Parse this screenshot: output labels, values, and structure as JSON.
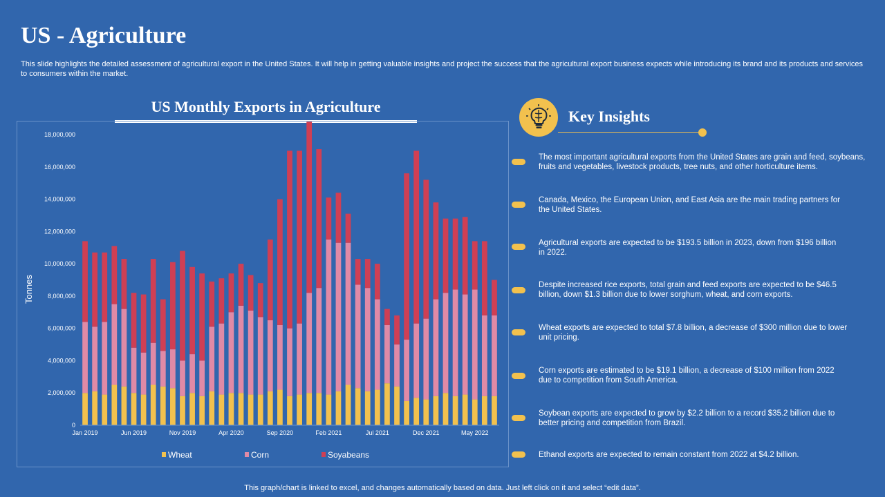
{
  "page": {
    "title": "US - Agriculture",
    "subtitle": "This slide highlights the detailed assessment of agricultural export in the United States. It will help in getting valuable insights and project the success that the agricultural export business expects while introducing its brand and its products and services to consumers within the market.",
    "footer": "This graph/chart is linked to excel,  and changes automatically based on data. Just left click on it and select “edit data”."
  },
  "insights": {
    "heading": "Key Insights",
    "icon": "brain-lightbulb-icon",
    "accent": "#f2c14e",
    "items": [
      "The most important agricultural exports from the United States are grain and feed, soybeans, fruits and vegetables, livestock products, tree nuts, and other horticulture items.",
      "Canada, Mexico, the European Union, and East Asia are the main trading partners for the United States.",
      "Agricultural exports are expected to be $193.5 billion in 2023, down from $196 billion in 2022.",
      "Despite increased rice exports, total grain and feed exports are expected to  be $46.5 billion, down $1.3 billion due to lower sorghum, wheat, and corn exports.",
      "Wheat exports are expected to total $7.8 billion, a decrease of $300 million due to lower unit pricing.",
      "Corn exports are estimated to be $19.1 billion, a decrease of $100 million from 2022 due to competition from South America.",
      "Soybean exports are expected to grow by $2.2 billion to a record $35.2 billion due to better pricing and competition from Brazil.",
      "Ethanol exports are expected to remain constant from 2022 at $4.2 billion."
    ]
  },
  "chart_data": {
    "type": "bar",
    "stacked": true,
    "title": "US Monthly Exports in Agriculture",
    "xlabel": "",
    "ylabel": "Tonnes",
    "ylim": [
      0,
      18000000
    ],
    "yticks": [
      0,
      2000000,
      4000000,
      6000000,
      8000000,
      10000000,
      12000000,
      14000000,
      16000000,
      18000000
    ],
    "ytick_labels": [
      "0",
      "2,000,000",
      "4,000,000",
      "6,000,000",
      "8,000,000",
      "10,000,000",
      "12,000,000",
      "14,000,000",
      "16,000,000",
      "18,000,000"
    ],
    "categories": [
      "Jan 2019",
      "Feb 2019",
      "Mar 2019",
      "Apr 2019",
      "May 2019",
      "Jun 2019",
      "Jul 2019",
      "Aug 2019",
      "Sep 2019",
      "Oct 2019",
      "Nov 2019",
      "Dec 2019",
      "Jan 2020",
      "Feb 2020",
      "Mar 2020",
      "Apr 2020",
      "May 2020",
      "Jun 2020",
      "Jul 2020",
      "Aug 2020",
      "Sep 2020",
      "Oct 2020",
      "Nov 2020",
      "Dec 2020",
      "Jan 2021",
      "Feb 2021",
      "Mar 2021",
      "Apr 2021",
      "May 2021",
      "Jun 2021",
      "Jul 2021",
      "Aug 2021",
      "Sep 2021",
      "Oct 2021",
      "Nov 2021",
      "Dec 2021",
      "Jan 2022",
      "Feb 2022",
      "Mar 2022",
      "Apr 2022",
      "May 2022",
      "Jun 2022",
      "Jul 2022"
    ],
    "tick_labels": [
      {
        "index": 0,
        "label": "Jan 2019"
      },
      {
        "index": 5,
        "label": "Jun 2019"
      },
      {
        "index": 10,
        "label": "Nov 2019"
      },
      {
        "index": 15,
        "label": "Apr 2020"
      },
      {
        "index": 20,
        "label": "Sep 2020"
      },
      {
        "index": 25,
        "label": "Feb 2021"
      },
      {
        "index": 30,
        "label": "Jul 2021"
      },
      {
        "index": 35,
        "label": "Dec 2021"
      },
      {
        "index": 40,
        "label": "May 2022"
      }
    ],
    "legend_position": "bottom",
    "series": [
      {
        "name": "Wheat",
        "color": "#f2c14e",
        "values": [
          2000000,
          2100000,
          1900000,
          2500000,
          2400000,
          2000000,
          1900000,
          2500000,
          2400000,
          2300000,
          1800000,
          2000000,
          1800000,
          2100000,
          1900000,
          2000000,
          2000000,
          1900000,
          1900000,
          2100000,
          2200000,
          1800000,
          1900000,
          2000000,
          2000000,
          1900000,
          2100000,
          2500000,
          2300000,
          2100000,
          2200000,
          2600000,
          2400000,
          1500000,
          1700000,
          1600000,
          1800000,
          2000000,
          1800000,
          1900000,
          1600000,
          1800000,
          1800000
        ]
      },
      {
        "name": "Corn",
        "color": "#e08aa6",
        "values": [
          4400000,
          4000000,
          4500000,
          5000000,
          4800000,
          2800000,
          2600000,
          2600000,
          2200000,
          2400000,
          2200000,
          2400000,
          2200000,
          4000000,
          4400000,
          5000000,
          5400000,
          5200000,
          4800000,
          4400000,
          4000000,
          4200000,
          4400000,
          6200000,
          6500000,
          9600000,
          9200000,
          8800000,
          6400000,
          6400000,
          5600000,
          3600000,
          2600000,
          3800000,
          4600000,
          5000000,
          6000000,
          6200000,
          6600000,
          6200000,
          6800000,
          5000000,
          5000000
        ]
      },
      {
        "name": "Soyabeans",
        "color": "#cf3f54",
        "values": [
          5000000,
          4600000,
          4300000,
          3600000,
          3100000,
          3400000,
          3600000,
          5200000,
          3200000,
          5400000,
          6800000,
          5400000,
          5400000,
          2800000,
          2800000,
          2400000,
          2600000,
          2200000,
          2100000,
          5000000,
          7800000,
          11000000,
          10700000,
          10600000,
          8600000,
          2600000,
          3100000,
          1800000,
          1600000,
          1800000,
          2200000,
          1000000,
          1800000,
          10300000,
          10700000,
          8600000,
          6000000,
          4600000,
          4400000,
          4800000,
          3000000,
          4600000,
          2200000
        ]
      }
    ]
  }
}
